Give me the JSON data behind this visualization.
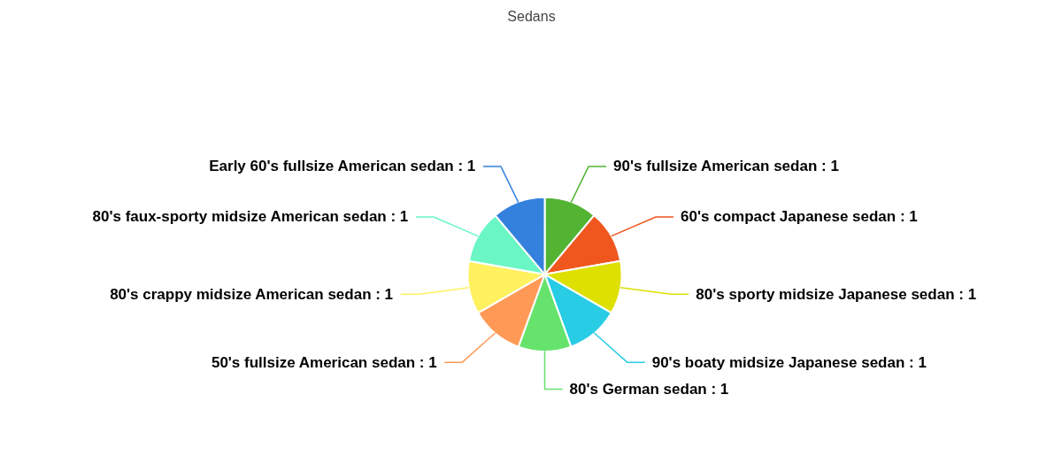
{
  "chart_data": {
    "type": "pie",
    "title": "Sedans",
    "categories": [
      "90's fullsize American sedan",
      "60's compact Japanese sedan",
      "80's sporty midsize Japanese sedan",
      "90's boaty midsize Japanese sedan",
      "80's German sedan",
      "50's fullsize American sedan",
      "80's crappy midsize American sedan",
      "80's faux-sporty midsize American sedan",
      "Early 60's fullsize American sedan"
    ],
    "values": [
      1,
      1,
      1,
      1,
      1,
      1,
      1,
      1,
      1
    ],
    "colors": [
      "#53b433",
      "#f0571e",
      "#dde000",
      "#28cce4",
      "#66e36c",
      "#ff9955",
      "#fff15f",
      "#6af7c5",
      "#3381dd"
    ],
    "value_labels": [
      ": 1",
      ": 1",
      ": 1",
      ": 1",
      ": 1",
      ": 1",
      ": 1",
      ": 1",
      ": 1"
    ]
  }
}
